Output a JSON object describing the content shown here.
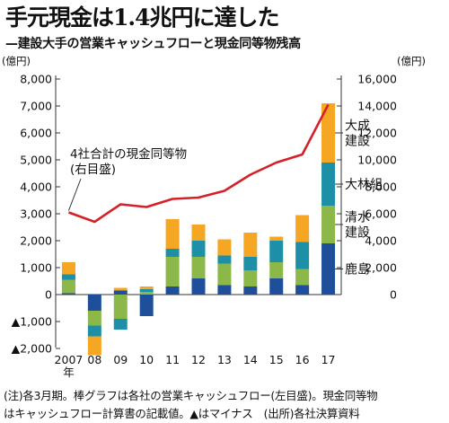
{
  "header": {
    "title": "手元現金は1.4兆円に達した",
    "subtitle": "—建設大手の営業キャッシュフローと現金同等物残高"
  },
  "units": {
    "left": "(億円)",
    "right": "(億円)"
  },
  "notes": {
    "line1": "(注)各3月期。棒グラフは各社の営業キャッシュフロー(左目盛)。現金同等物",
    "line2": "はキャッシュフロー計算書の記載値。▲はマイナス　(出所)各社決算資料"
  },
  "colors": {
    "kajima": "#1f4e9b",
    "shimizu": "#8cb84a",
    "obayashi": "#1d90a8",
    "taisei": "#f5a623",
    "line": "#d62028"
  },
  "chart_data": {
    "type": "bar",
    "stacked": true,
    "categories": [
      "2007\n年",
      "08",
      "09",
      "10",
      "11",
      "12",
      "13",
      "14",
      "15",
      "16",
      "17"
    ],
    "y_left": {
      "ylim": [
        -2000,
        8000
      ],
      "ticks": [
        -2000,
        -1000,
        0,
        1000,
        2000,
        3000,
        4000,
        5000,
        6000,
        7000,
        8000
      ],
      "tick_labels": [
        "▲2,000",
        "▲1,000",
        "0",
        "1,000",
        "2,000",
        "3,000",
        "4,000",
        "5,000",
        "6,000",
        "7,000",
        "8,000"
      ]
    },
    "y_right": {
      "ylim": [
        -4000,
        16000
      ],
      "ticks": [
        0,
        2000,
        4000,
        6000,
        8000,
        10000,
        12000,
        14000,
        16000
      ],
      "tick_labels": [
        "0",
        "2,000",
        "4,000",
        "6,000",
        "8,000",
        "10,000",
        "12,000",
        "14,000",
        "16,000"
      ]
    },
    "series": [
      {
        "name": "鹿島",
        "color_key": "kajima",
        "values": [
          50,
          -600,
          150,
          -800,
          300,
          600,
          350,
          300,
          600,
          350,
          1900
        ]
      },
      {
        "name": "清水建設",
        "color_key": "shimizu",
        "values": [
          500,
          -550,
          -900,
          100,
          1100,
          800,
          800,
          600,
          600,
          600,
          1400
        ]
      },
      {
        "name": "大林組",
        "color_key": "obayashi",
        "values": [
          200,
          -400,
          -400,
          100,
          300,
          600,
          300,
          500,
          800,
          1000,
          1600
        ]
      },
      {
        "name": "大成建設",
        "color_key": "taisei",
        "values": [
          450,
          -700,
          100,
          100,
          1100,
          600,
          600,
          900,
          150,
          1000,
          2200
        ]
      }
    ],
    "line": {
      "name": "4社合計の現金同等物\n(右目盛)",
      "axis": "right",
      "values": [
        6100,
        5400,
        6700,
        6500,
        7100,
        7200,
        7700,
        8900,
        9800,
        10400,
        14100
      ]
    }
  }
}
